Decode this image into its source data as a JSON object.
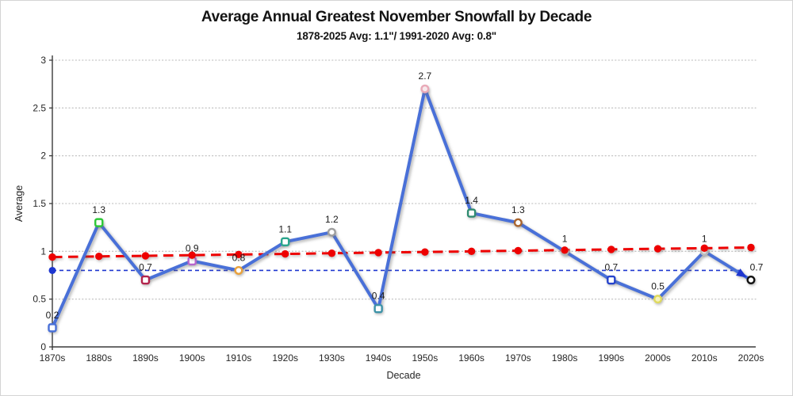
{
  "chart_data": {
    "type": "line",
    "title": "Average Annual Greatest November Snowfall by Decade",
    "subtitle": "1878-2025 Avg: 1.1\"/ 1991-2020 Avg: 0.8\"",
    "xlabel": "Decade",
    "ylabel": "Average",
    "ylim": [
      0,
      3
    ],
    "y_ticks": [
      "0",
      "0.5",
      "1",
      "1.5",
      "2",
      "2.5",
      "3"
    ],
    "grid": "dotted-horizontal",
    "legend": "none",
    "categories": [
      "1870s",
      "1880s",
      "1890s",
      "1900s",
      "1910s",
      "1920s",
      "1930s",
      "1940s",
      "1950s",
      "1960s",
      "1970s",
      "1980s",
      "1990s",
      "2000s",
      "2010s",
      "2020s"
    ],
    "series": [
      {
        "name": "decade-average-snowfall",
        "style": "solid-line-with-markers",
        "color": "#4970D8",
        "values": [
          0.2,
          1.3,
          0.7,
          0.9,
          0.8,
          1.1,
          1.2,
          0.4,
          2.7,
          1.4,
          1.3,
          1,
          0.7,
          0.5,
          1,
          0.7
        ],
        "labels": [
          "0.2",
          "1.3",
          "0.7",
          "0.9",
          "0.8",
          "1.1",
          "1.2",
          "0.4",
          "2.7",
          "1.4",
          "1.3",
          "1",
          "0.7",
          "0.5",
          "1",
          "0.7"
        ],
        "end_arrow": true,
        "markers": [
          {
            "shape": "square",
            "color": "#4970D8",
            "fill": "#FFFFFF"
          },
          {
            "shape": "square",
            "color": "#2DC937",
            "fill": "#FFFFFF"
          },
          {
            "shape": "square",
            "color": "#B2234B",
            "fill": "#FFFFFF"
          },
          {
            "shape": "square",
            "color": "#B765CE",
            "fill": "#FFFFFF"
          },
          {
            "shape": "circle",
            "color": "#E9A13B",
            "fill": "#FFFFFF"
          },
          {
            "shape": "square",
            "color": "#2AA58C",
            "fill": "#FFFFFF"
          },
          {
            "shape": "circle",
            "color": "#9E9E9E",
            "fill": "#FFFFFF"
          },
          {
            "shape": "square",
            "color": "#3E93A8",
            "fill": "#FFFFFF"
          },
          {
            "shape": "circle",
            "color": "#E9AAB8",
            "fill": "#F7E9EC"
          },
          {
            "shape": "square",
            "color": "#2F8B70",
            "fill": "#FFFFFF"
          },
          {
            "shape": "circle",
            "color": "#A9652F",
            "fill": "#FFFFFF"
          },
          {
            "shape": "circle",
            "color": "#C9C9C9",
            "fill": "#FFFFFF"
          },
          {
            "shape": "square",
            "color": "#2543CC",
            "fill": "#FFFFFF"
          },
          {
            "shape": "circle",
            "color": "#DFDA5E",
            "fill": "#F7F3BE"
          },
          {
            "shape": "circle",
            "color": "#BFBFBF",
            "fill": "#FFFFFF"
          },
          {
            "shape": "circle",
            "color": "#111111",
            "fill": "#FFFFFF"
          }
        ]
      },
      {
        "name": "linear-trend",
        "style": "dashed-line-with-dot-markers",
        "color": "#EE0000",
        "values": [
          0.94,
          0.947,
          0.953,
          0.96,
          0.967,
          0.973,
          0.98,
          0.987,
          0.993,
          1.0,
          1.007,
          1.013,
          1.02,
          1.027,
          1.033,
          1.04
        ]
      },
      {
        "name": "avg-1991-2020-reference",
        "style": "thin-dashed-horizontal",
        "color": "#1E36D0",
        "value": 0.8,
        "start_dot": true
      }
    ],
    "colors": {
      "line": "#4970D8",
      "trend": "#EE0000",
      "reference": "#1E36D0",
      "grid": "#C6C6C6",
      "axis": "#3A3A3A",
      "text": "#1A1A1A"
    }
  }
}
